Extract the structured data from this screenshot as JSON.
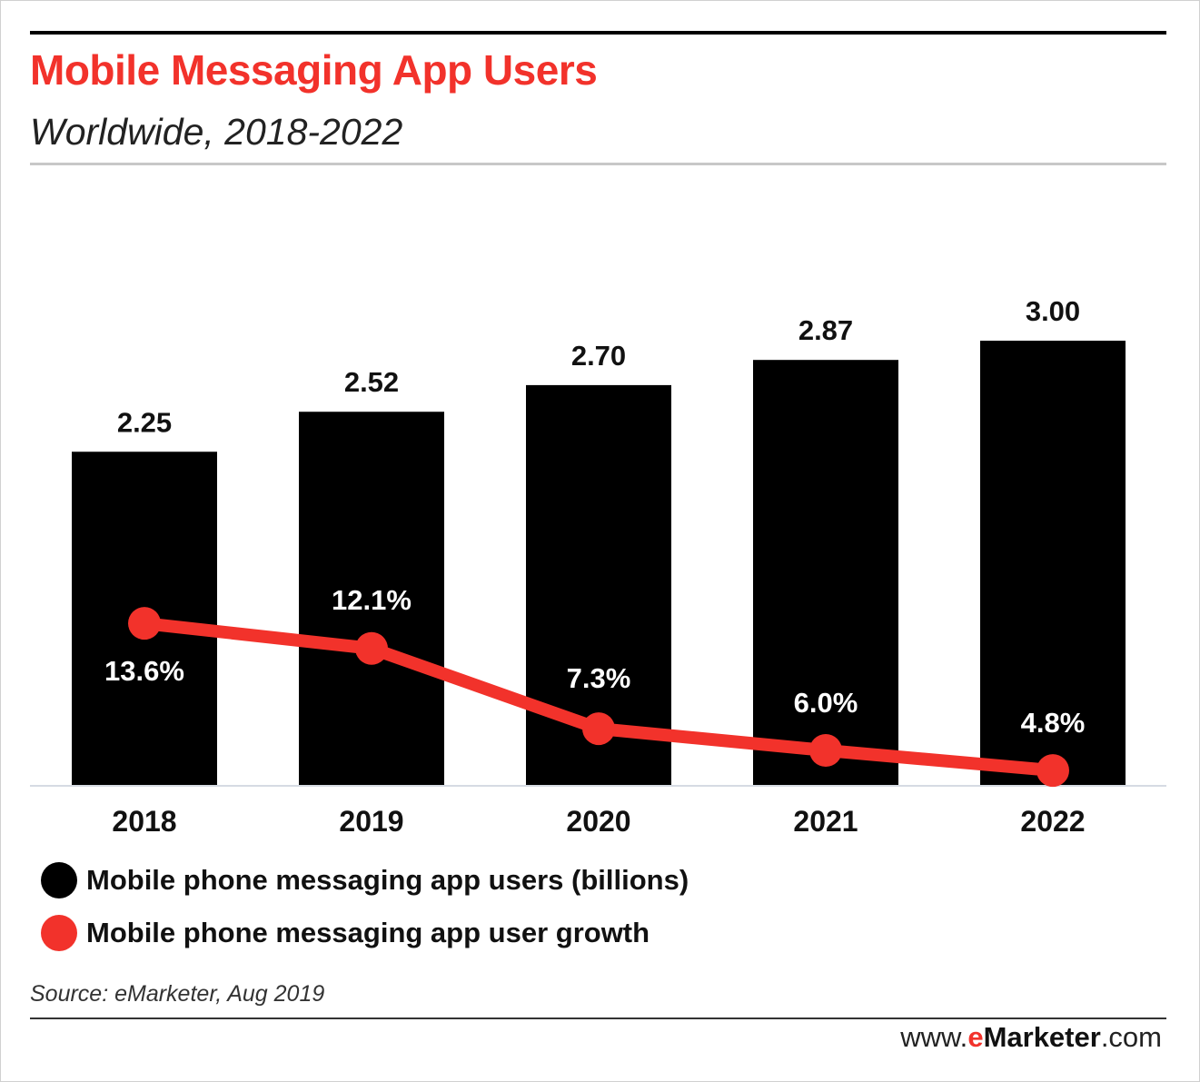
{
  "header": {
    "title": "Mobile Messaging App Users",
    "subtitle": "Worldwide, 2018-2022"
  },
  "chart_data": {
    "type": "bar",
    "categories": [
      "2018",
      "2019",
      "2020",
      "2021",
      "2022"
    ],
    "series": [
      {
        "name": "Mobile phone messaging app users (billions)",
        "type": "bar",
        "values": [
          2.25,
          2.52,
          2.7,
          2.87,
          3.0
        ],
        "labels": [
          "2.25",
          "2.52",
          "2.70",
          "2.87",
          "3.00"
        ],
        "color": "#000000"
      },
      {
        "name": "Mobile phone messaging app user growth",
        "type": "line",
        "values": [
          13.6,
          12.1,
          7.3,
          6.0,
          4.8
        ],
        "labels": [
          "13.6%",
          "12.1%",
          "7.3%",
          "6.0%",
          "4.8%"
        ],
        "color": "#f2322b"
      }
    ],
    "xlabel": "",
    "ylabel": "",
    "ylim": [
      0,
      3.0
    ],
    "grid": false,
    "legend": "bottom"
  },
  "footer": {
    "source": "Source: eMarketer, Aug 2019",
    "brand_prefix": "www.",
    "brand_e": "e",
    "brand_name": "Marketer",
    "brand_suffix": ".com"
  },
  "colors": {
    "accent": "#f2322b",
    "bar": "#000000"
  }
}
